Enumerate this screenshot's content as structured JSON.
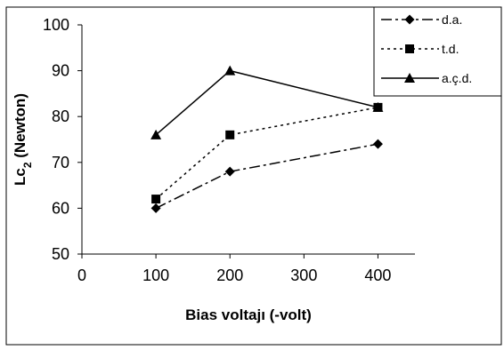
{
  "chart_data": {
    "type": "line",
    "title": "",
    "xlabel": "Bias voltajı (-volt)",
    "ylabel_main": "Lc",
    "ylabel_sub": "2",
    "ylabel_rest": " (Newton)",
    "xlim": [
      0,
      450
    ],
    "ylim": [
      50,
      100
    ],
    "x_ticks": [
      "0",
      "100",
      "200",
      "300",
      "400"
    ],
    "y_ticks": [
      "50",
      "60",
      "70",
      "80",
      "90",
      "100"
    ],
    "grid": false,
    "legend_position": "top-right",
    "x": [
      100,
      200,
      400
    ],
    "series": [
      {
        "name": "d.a.",
        "values": [
          60,
          68,
          74
        ],
        "marker": "diamond",
        "dash": "dash-dot",
        "color": "#000000"
      },
      {
        "name": "t.d.",
        "values": [
          62,
          76,
          82
        ],
        "marker": "square",
        "dash": "dotted",
        "color": "#000000"
      },
      {
        "name": "a.ç.d.",
        "values": [
          76,
          90,
          82
        ],
        "marker": "triangle",
        "dash": "solid",
        "color": "#000000"
      }
    ]
  }
}
